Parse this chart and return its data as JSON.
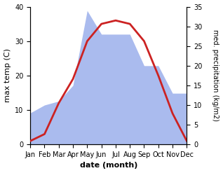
{
  "months": [
    "Jan",
    "Feb",
    "Mar",
    "Apr",
    "May",
    "Jun",
    "Jul",
    "Aug",
    "Sep",
    "Oct",
    "Nov",
    "Dec"
  ],
  "temperature": [
    1,
    3,
    12,
    19,
    30,
    35,
    36,
    35,
    30,
    20,
    9,
    1
  ],
  "precipitation": [
    8,
    10,
    11,
    15,
    34,
    28,
    28,
    28,
    20,
    20,
    13,
    13
  ],
  "temp_color": "#cc2222",
  "precip_color": "#aabbee",
  "ylim_temp": [
    0,
    40
  ],
  "ylim_precip": [
    0,
    35
  ],
  "xlabel": "date (month)",
  "ylabel_left": "max temp (C)",
  "ylabel_right": "med. precipitation (kg/m2)",
  "bg_color": "#ffffff",
  "temp_linewidth": 2.0,
  "label_fontsize": 8,
  "tick_fontsize": 7
}
